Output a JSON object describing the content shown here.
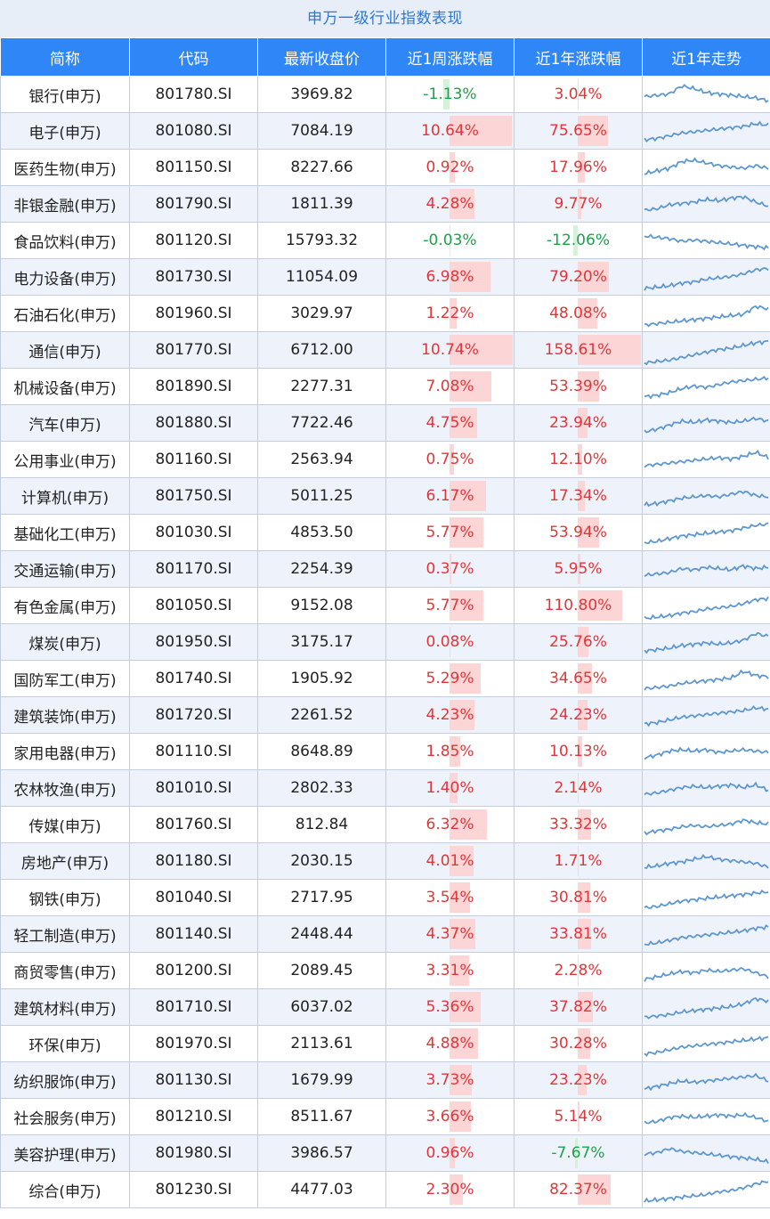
{
  "title": "申万一级行业指数表现",
  "columns": [
    "简称",
    "代码",
    "最新收盘价",
    "近1周涨跌幅",
    "近1年涨跌幅",
    "近1年走势"
  ],
  "colors": {
    "header_bg": "#2f86f6",
    "title_bg": "#e8eef8",
    "title_text": "#2e78d4",
    "up": "#e0363a",
    "down": "#1aa34a",
    "bar_up": "#fcd6d6",
    "bar_down": "#d6f0dc",
    "spark": "#5e97d0"
  },
  "bar_max": {
    "week": 10.74,
    "year": 158.61
  },
  "rows": [
    {
      "name": "银行(申万)",
      "code": "801780.SI",
      "close": "3969.82",
      "week": -1.13,
      "week_text": "-1.13%",
      "year": 3.04,
      "year_text": "3.04%"
    },
    {
      "name": "电子(申万)",
      "code": "801080.SI",
      "close": "7084.19",
      "week": 10.64,
      "week_text": "10.64%",
      "year": 75.65,
      "year_text": "75.65%"
    },
    {
      "name": "医药生物(申万)",
      "code": "801150.SI",
      "close": "8227.66",
      "week": 0.92,
      "week_text": "0.92%",
      "year": 17.96,
      "year_text": "17.96%"
    },
    {
      "name": "非银金融(申万)",
      "code": "801790.SI",
      "close": "1811.39",
      "week": 4.28,
      "week_text": "4.28%",
      "year": 9.77,
      "year_text": "9.77%"
    },
    {
      "name": "食品饮料(申万)",
      "code": "801120.SI",
      "close": "15793.32",
      "week": -0.03,
      "week_text": "-0.03%",
      "year": -12.06,
      "year_text": "-12.06%"
    },
    {
      "name": "电力设备(申万)",
      "code": "801730.SI",
      "close": "11054.09",
      "week": 6.98,
      "week_text": "6.98%",
      "year": 79.2,
      "year_text": "79.20%"
    },
    {
      "name": "石油石化(申万)",
      "code": "801960.SI",
      "close": "3029.97",
      "week": 1.22,
      "week_text": "1.22%",
      "year": 48.08,
      "year_text": "48.08%"
    },
    {
      "name": "通信(申万)",
      "code": "801770.SI",
      "close": "6712.00",
      "week": 10.74,
      "week_text": "10.74%",
      "year": 158.61,
      "year_text": "158.61%"
    },
    {
      "name": "机械设备(申万)",
      "code": "801890.SI",
      "close": "2277.31",
      "week": 7.08,
      "week_text": "7.08%",
      "year": 53.39,
      "year_text": "53.39%"
    },
    {
      "name": "汽车(申万)",
      "code": "801880.SI",
      "close": "7722.46",
      "week": 4.75,
      "week_text": "4.75%",
      "year": 23.94,
      "year_text": "23.94%"
    },
    {
      "name": "公用事业(申万)",
      "code": "801160.SI",
      "close": "2563.94",
      "week": 0.75,
      "week_text": "0.75%",
      "year": 12.1,
      "year_text": "12.10%"
    },
    {
      "name": "计算机(申万)",
      "code": "801750.SI",
      "close": "5011.25",
      "week": 6.17,
      "week_text": "6.17%",
      "year": 17.34,
      "year_text": "17.34%"
    },
    {
      "name": "基础化工(申万)",
      "code": "801030.SI",
      "close": "4853.50",
      "week": 5.77,
      "week_text": "5.77%",
      "year": 53.94,
      "year_text": "53.94%"
    },
    {
      "name": "交通运输(申万)",
      "code": "801170.SI",
      "close": "2254.39",
      "week": 0.37,
      "week_text": "0.37%",
      "year": 5.95,
      "year_text": "5.95%"
    },
    {
      "name": "有色金属(申万)",
      "code": "801050.SI",
      "close": "9152.08",
      "week": 5.77,
      "week_text": "5.77%",
      "year": 110.8,
      "year_text": "110.80%"
    },
    {
      "name": "煤炭(申万)",
      "code": "801950.SI",
      "close": "3175.17",
      "week": 0.08,
      "week_text": "0.08%",
      "year": 25.76,
      "year_text": "25.76%"
    },
    {
      "name": "国防军工(申万)",
      "code": "801740.SI",
      "close": "1905.92",
      "week": 5.29,
      "week_text": "5.29%",
      "year": 34.65,
      "year_text": "34.65%"
    },
    {
      "name": "建筑装饰(申万)",
      "code": "801720.SI",
      "close": "2261.52",
      "week": 4.23,
      "week_text": "4.23%",
      "year": 24.23,
      "year_text": "24.23%"
    },
    {
      "name": "家用电器(申万)",
      "code": "801110.SI",
      "close": "8648.89",
      "week": 1.85,
      "week_text": "1.85%",
      "year": 10.13,
      "year_text": "10.13%"
    },
    {
      "name": "农林牧渔(申万)",
      "code": "801010.SI",
      "close": "2802.33",
      "week": 1.4,
      "week_text": "1.40%",
      "year": 2.14,
      "year_text": "2.14%"
    },
    {
      "name": "传媒(申万)",
      "code": "801760.SI",
      "close": "812.84",
      "week": 6.32,
      "week_text": "6.32%",
      "year": 33.32,
      "year_text": "33.32%"
    },
    {
      "name": "房地产(申万)",
      "code": "801180.SI",
      "close": "2030.15",
      "week": 4.01,
      "week_text": "4.01%",
      "year": 1.71,
      "year_text": "1.71%"
    },
    {
      "name": "钢铁(申万)",
      "code": "801040.SI",
      "close": "2717.95",
      "week": 3.54,
      "week_text": "3.54%",
      "year": 30.81,
      "year_text": "30.81%"
    },
    {
      "name": "轻工制造(申万)",
      "code": "801140.SI",
      "close": "2448.44",
      "week": 4.37,
      "week_text": "4.37%",
      "year": 33.81,
      "year_text": "33.81%"
    },
    {
      "name": "商贸零售(申万)",
      "code": "801200.SI",
      "close": "2089.45",
      "week": 3.31,
      "week_text": "3.31%",
      "year": 2.28,
      "year_text": "2.28%"
    },
    {
      "name": "建筑材料(申万)",
      "code": "801710.SI",
      "close": "6037.02",
      "week": 5.36,
      "week_text": "5.36%",
      "year": 37.82,
      "year_text": "37.82%"
    },
    {
      "name": "环保(申万)",
      "code": "801970.SI",
      "close": "2113.61",
      "week": 4.88,
      "week_text": "4.88%",
      "year": 30.28,
      "year_text": "30.28%"
    },
    {
      "name": "纺织服饰(申万)",
      "code": "801130.SI",
      "close": "1679.99",
      "week": 3.73,
      "week_text": "3.73%",
      "year": 23.23,
      "year_text": "23.23%"
    },
    {
      "name": "社会服务(申万)",
      "code": "801210.SI",
      "close": "8511.67",
      "week": 3.66,
      "week_text": "3.66%",
      "year": 5.14,
      "year_text": "5.14%"
    },
    {
      "name": "美容护理(申万)",
      "code": "801980.SI",
      "close": "3986.57",
      "week": 0.96,
      "week_text": "0.96%",
      "year": -7.67,
      "year_text": "-7.67%"
    },
    {
      "name": "综合(申万)",
      "code": "801230.SI",
      "close": "4477.03",
      "week": 2.3,
      "week_text": "2.30%",
      "year": 82.37,
      "year_text": "82.37%"
    }
  ],
  "chart_data": {
    "type": "table",
    "title": "申万一级行业指数表现",
    "columns": [
      "简称",
      "代码",
      "最新收盘价",
      "近1周涨跌幅",
      "近1年涨跌幅",
      "近1年走势"
    ],
    "note": "近1周涨跌幅 / 近1年涨跌幅 values in % shown with data bars; 近1年走势 shown as sparklines",
    "sparkline_trend": "approximate shape per row, normalized 0-1 (start to end of year)",
    "sparklines": [
      [
        0.45,
        0.5,
        0.55,
        0.85,
        0.75,
        0.6,
        0.55,
        0.5,
        0.45,
        0.4,
        0.3
      ],
      [
        0.2,
        0.25,
        0.35,
        0.45,
        0.5,
        0.55,
        0.6,
        0.65,
        0.7,
        0.8,
        0.75
      ],
      [
        0.3,
        0.4,
        0.5,
        0.75,
        0.8,
        0.7,
        0.6,
        0.55,
        0.5,
        0.6,
        0.5
      ],
      [
        0.3,
        0.35,
        0.5,
        0.55,
        0.6,
        0.7,
        0.65,
        0.75,
        0.8,
        0.6,
        0.45
      ],
      [
        0.7,
        0.65,
        0.6,
        0.5,
        0.55,
        0.5,
        0.45,
        0.4,
        0.35,
        0.3,
        0.25
      ],
      [
        0.1,
        0.15,
        0.2,
        0.3,
        0.35,
        0.45,
        0.5,
        0.55,
        0.65,
        0.8,
        0.85
      ],
      [
        0.1,
        0.15,
        0.2,
        0.25,
        0.3,
        0.35,
        0.4,
        0.45,
        0.5,
        0.8,
        0.7
      ],
      [
        0.05,
        0.1,
        0.15,
        0.25,
        0.35,
        0.45,
        0.55,
        0.6,
        0.7,
        0.8,
        0.85
      ],
      [
        0.15,
        0.2,
        0.3,
        0.45,
        0.55,
        0.5,
        0.6,
        0.7,
        0.75,
        0.8,
        0.85
      ],
      [
        0.2,
        0.3,
        0.45,
        0.6,
        0.55,
        0.65,
        0.6,
        0.55,
        0.6,
        0.7,
        0.6
      ],
      [
        0.3,
        0.35,
        0.4,
        0.45,
        0.5,
        0.55,
        0.6,
        0.55,
        0.65,
        0.8,
        0.6
      ],
      [
        0.2,
        0.25,
        0.35,
        0.45,
        0.5,
        0.55,
        0.5,
        0.6,
        0.7,
        0.55,
        0.5
      ],
      [
        0.15,
        0.2,
        0.3,
        0.4,
        0.45,
        0.5,
        0.55,
        0.6,
        0.7,
        0.8,
        0.85
      ],
      [
        0.3,
        0.35,
        0.4,
        0.55,
        0.5,
        0.6,
        0.55,
        0.5,
        0.65,
        0.55,
        0.6
      ],
      [
        0.05,
        0.1,
        0.15,
        0.25,
        0.3,
        0.4,
        0.45,
        0.5,
        0.6,
        0.75,
        0.8
      ],
      [
        0.2,
        0.25,
        0.3,
        0.4,
        0.45,
        0.5,
        0.45,
        0.5,
        0.6,
        0.85,
        0.75
      ],
      [
        0.15,
        0.2,
        0.25,
        0.35,
        0.4,
        0.45,
        0.5,
        0.55,
        0.8,
        0.65,
        0.6
      ],
      [
        0.2,
        0.25,
        0.35,
        0.45,
        0.5,
        0.55,
        0.6,
        0.65,
        0.7,
        0.8,
        0.75
      ],
      [
        0.3,
        0.4,
        0.55,
        0.6,
        0.55,
        0.6,
        0.5,
        0.55,
        0.6,
        0.55,
        0.5
      ],
      [
        0.3,
        0.35,
        0.45,
        0.55,
        0.6,
        0.55,
        0.6,
        0.65,
        0.55,
        0.65,
        0.45
      ],
      [
        0.2,
        0.3,
        0.35,
        0.45,
        0.5,
        0.45,
        0.5,
        0.55,
        0.7,
        0.6,
        0.55
      ],
      [
        0.3,
        0.35,
        0.45,
        0.5,
        0.6,
        0.7,
        0.6,
        0.55,
        0.5,
        0.45,
        0.3
      ],
      [
        0.15,
        0.2,
        0.3,
        0.4,
        0.45,
        0.5,
        0.55,
        0.6,
        0.65,
        0.7,
        0.75
      ],
      [
        0.15,
        0.2,
        0.3,
        0.4,
        0.45,
        0.5,
        0.55,
        0.6,
        0.65,
        0.75,
        0.8
      ],
      [
        0.2,
        0.3,
        0.4,
        0.5,
        0.45,
        0.55,
        0.5,
        0.55,
        0.6,
        0.45,
        0.3
      ],
      [
        0.15,
        0.2,
        0.25,
        0.35,
        0.4,
        0.45,
        0.5,
        0.55,
        0.65,
        0.85,
        0.75
      ],
      [
        0.15,
        0.2,
        0.3,
        0.4,
        0.45,
        0.5,
        0.55,
        0.6,
        0.65,
        0.7,
        0.75
      ],
      [
        0.2,
        0.3,
        0.4,
        0.5,
        0.45,
        0.5,
        0.55,
        0.6,
        0.65,
        0.7,
        0.5
      ],
      [
        0.3,
        0.35,
        0.5,
        0.55,
        0.5,
        0.55,
        0.6,
        0.55,
        0.6,
        0.5,
        0.35
      ],
      [
        0.5,
        0.55,
        0.7,
        0.6,
        0.55,
        0.5,
        0.45,
        0.4,
        0.35,
        0.3,
        0.2
      ],
      [
        0.1,
        0.15,
        0.2,
        0.25,
        0.3,
        0.35,
        0.45,
        0.5,
        0.6,
        0.75,
        0.85
      ]
    ]
  }
}
